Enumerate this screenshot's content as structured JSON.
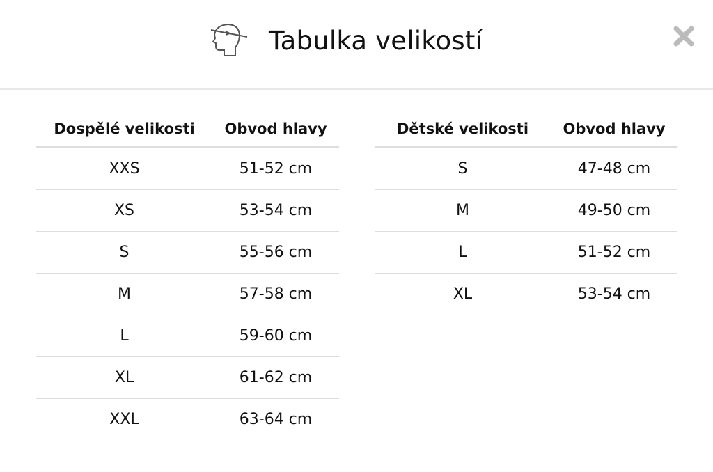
{
  "header": {
    "title": "Tabulka velikostí",
    "icon": "head-measure-icon",
    "close_icon": "close-icon"
  },
  "adult": {
    "headers": [
      "Dospělé velikosti",
      "Obvod hlavy"
    ],
    "rows": [
      [
        "XXS",
        "51-52 cm"
      ],
      [
        "XS",
        "53-54 cm"
      ],
      [
        "S",
        "55-56 cm"
      ],
      [
        "M",
        "57-58 cm"
      ],
      [
        "L",
        "59-60 cm"
      ],
      [
        "XL",
        "61-62 cm"
      ],
      [
        "XXL",
        "63-64 cm"
      ]
    ]
  },
  "kids": {
    "headers": [
      "Dětské velikosti",
      "Obvod hlavy"
    ],
    "rows": [
      [
        "S",
        "47-48 cm"
      ],
      [
        "M",
        "49-50 cm"
      ],
      [
        "L",
        "51-52 cm"
      ],
      [
        "XL",
        "53-54 cm"
      ]
    ]
  }
}
